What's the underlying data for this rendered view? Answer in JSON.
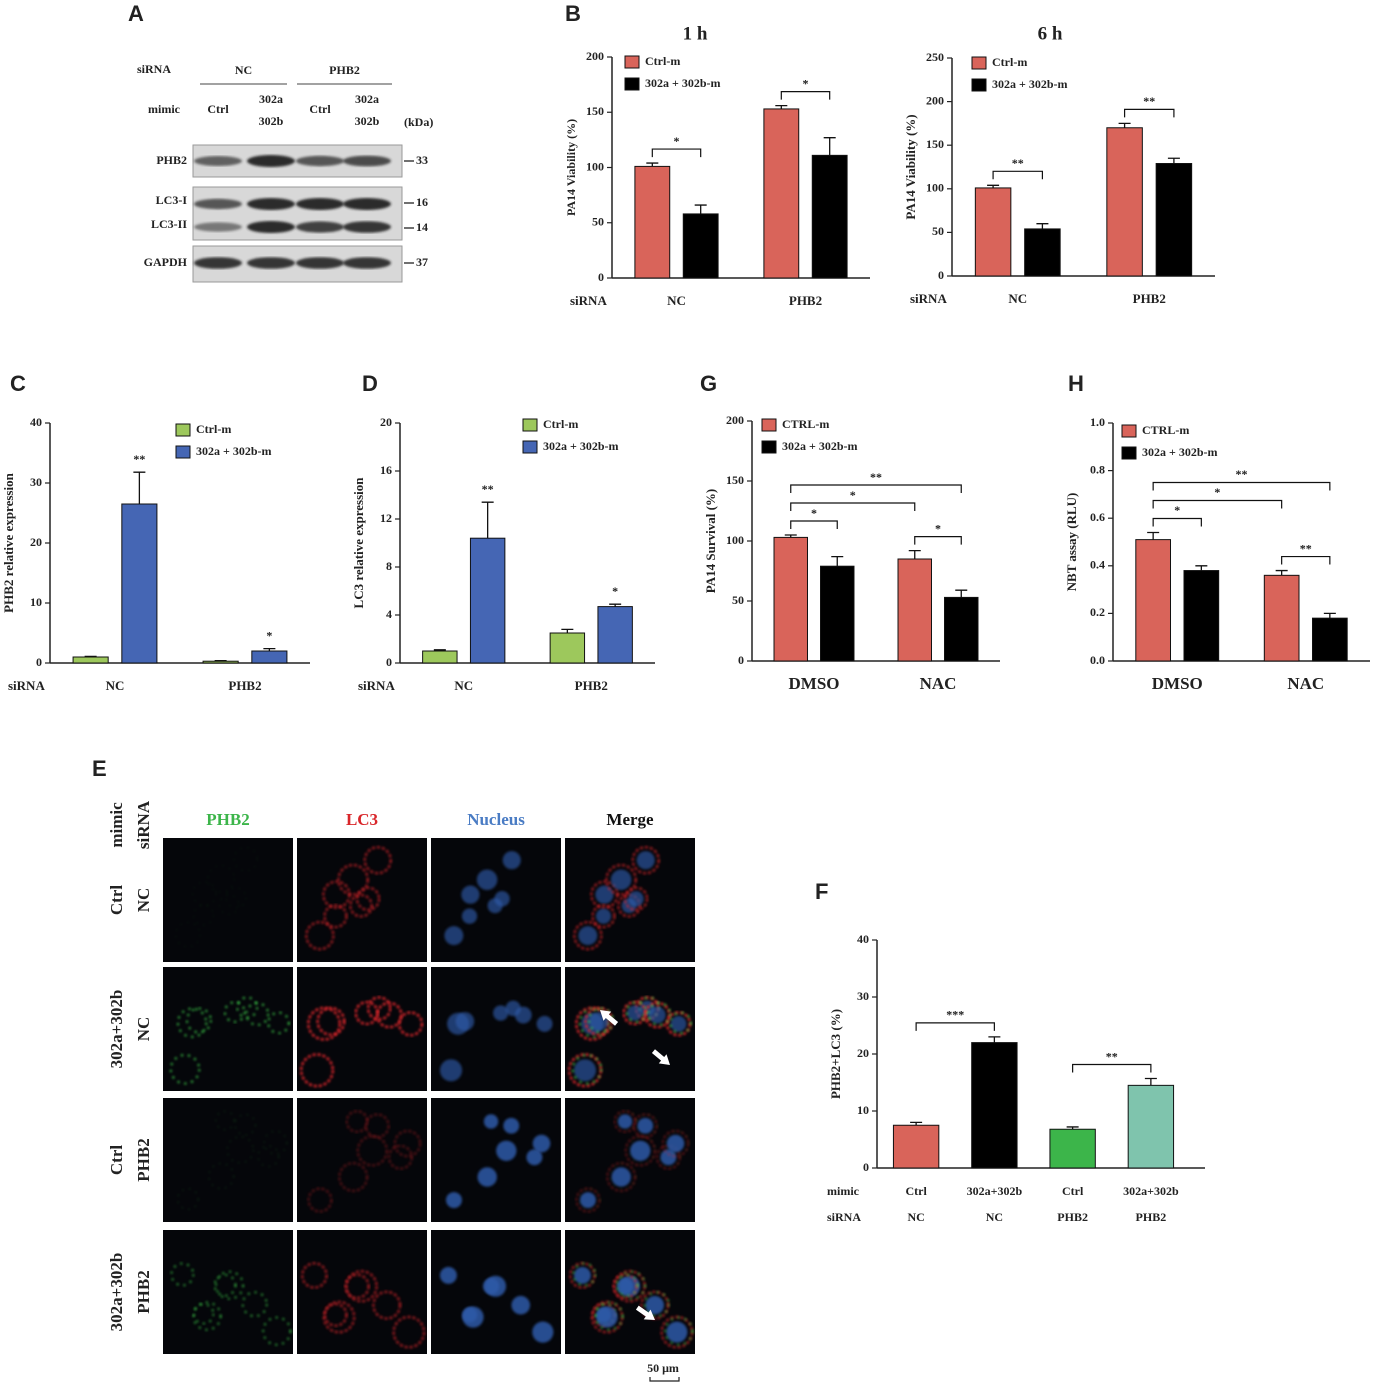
{
  "chart_data": [
    {
      "type": "bar",
      "label": "B",
      "title": "1 h",
      "ylabel": "PA14 Viability (%)",
      "category_title": "siRNA",
      "categories": [
        "NC",
        "PHB2"
      ],
      "series": [
        {
          "name": "Ctrl-m",
          "color": "#d9645a",
          "values": [
            101,
            153
          ],
          "errors": [
            3,
            3
          ]
        },
        {
          "name": "302a + 302b-m",
          "color": "#000000",
          "values": [
            58,
            111
          ],
          "errors": [
            8,
            16
          ]
        }
      ],
      "ylim": [
        0,
        200
      ],
      "yticks": [
        0,
        50,
        100,
        150,
        200
      ],
      "legend": "upper left",
      "annotations": [
        {
          "text": "*",
          "from": [
            0,
            0
          ],
          "to": [
            1,
            0
          ]
        },
        {
          "text": "*",
          "from": [
            0,
            1
          ],
          "to": [
            1,
            1
          ]
        }
      ]
    },
    {
      "type": "bar",
      "title": "6 h",
      "ylabel": "PA14 Viability (%)",
      "category_title": "siRNA",
      "categories": [
        "NC",
        "PHB2"
      ],
      "series": [
        {
          "name": "Ctrl-m",
          "color": "#d9645a",
          "values": [
            101,
            170
          ],
          "errors": [
            3,
            5
          ]
        },
        {
          "name": "302a + 302b-m",
          "color": "#000000",
          "values": [
            54,
            129
          ],
          "errors": [
            6,
            6
          ]
        }
      ],
      "ylim": [
        0,
        250
      ],
      "yticks": [
        0,
        50,
        100,
        150,
        200,
        250
      ],
      "legend": "upper left",
      "annotations": [
        {
          "text": "**",
          "from": [
            0,
            0
          ],
          "to": [
            1,
            0
          ]
        },
        {
          "text": "**",
          "from": [
            0,
            1
          ],
          "to": [
            1,
            1
          ]
        }
      ]
    },
    {
      "type": "bar",
      "label": "C",
      "ylabel": "PHB2 relative expression",
      "category_title": "siRNA",
      "categories": [
        "NC",
        "PHB2"
      ],
      "series": [
        {
          "name": "Ctrl-m",
          "color": "#9dc85c",
          "values": [
            1,
            0.3
          ],
          "errors": [
            0.1,
            0.1
          ]
        },
        {
          "name": "302a + 302b-m",
          "color": "#4566b4",
          "values": [
            26.5,
            2
          ],
          "errors": [
            5.3,
            0.4
          ]
        }
      ],
      "ylim": [
        0,
        40
      ],
      "yticks": [
        0,
        10,
        20,
        30,
        40
      ],
      "legend": "upper left",
      "annotations": [
        {
          "text": "**",
          "bar": [
            1,
            0
          ]
        },
        {
          "text": "*",
          "bar": [
            1,
            1
          ]
        }
      ]
    },
    {
      "type": "bar",
      "label": "D",
      "ylabel": "LC3 relative expression",
      "category_title": "siRNA",
      "categories": [
        "NC",
        "PHB2"
      ],
      "series": [
        {
          "name": "Ctrl-m",
          "color": "#9dc85c",
          "values": [
            1,
            2.5
          ],
          "errors": [
            0.1,
            0.3
          ]
        },
        {
          "name": "302a + 302b-m",
          "color": "#4566b4",
          "values": [
            10.4,
            4.7
          ],
          "errors": [
            3,
            0.2
          ]
        }
      ],
      "ylim": [
        0,
        20
      ],
      "yticks": [
        0,
        4,
        8,
        12,
        16,
        20
      ],
      "legend": "upper left",
      "annotations": [
        {
          "text": "**",
          "bar": [
            1,
            0
          ]
        },
        {
          "text": "*",
          "bar": [
            1,
            1
          ]
        }
      ]
    },
    {
      "type": "bar",
      "label": "G",
      "ylabel": "PA14 Survival (%)",
      "categories": [
        "DMSO",
        "NAC"
      ],
      "series": [
        {
          "name": "CTRL-m",
          "color": "#d9645a",
          "values": [
            103,
            85
          ],
          "errors": [
            2,
            7
          ]
        },
        {
          "name": "302a + 302b-m",
          "color": "#000000",
          "values": [
            79,
            53
          ],
          "errors": [
            8,
            6
          ]
        }
      ],
      "ylim": [
        0,
        200
      ],
      "yticks": [
        0,
        50,
        100,
        150,
        200
      ],
      "legend": "upper left",
      "annotations": [
        {
          "text": "*",
          "from": [
            0,
            0
          ],
          "to": [
            1,
            0
          ]
        },
        {
          "text": "*",
          "from": [
            0,
            1
          ],
          "to": [
            1,
            1
          ]
        },
        {
          "text": "*",
          "from": [
            0,
            0
          ],
          "to": [
            0,
            1
          ]
        },
        {
          "text": "**",
          "from": [
            0,
            0
          ],
          "to": [
            1,
            1
          ]
        }
      ]
    },
    {
      "type": "bar",
      "label": "H",
      "ylabel": "NBT assay (RLU)",
      "categories": [
        "DMSO",
        "NAC"
      ],
      "series": [
        {
          "name": "CTRL-m",
          "color": "#d9645a",
          "values": [
            0.51,
            0.36
          ],
          "errors": [
            0.03,
            0.02
          ]
        },
        {
          "name": "302a + 302b-m",
          "color": "#000000",
          "values": [
            0.38,
            0.18
          ],
          "errors": [
            0.02,
            0.02
          ]
        }
      ],
      "ylim": [
        0,
        1
      ],
      "yticks": [
        {
          "value": 0,
          "label": "0.0"
        },
        0.2,
        0.4,
        0.6,
        0.8,
        {
          "value": 1,
          "label": "1.0"
        }
      ],
      "legend": "upper left",
      "annotations": [
        {
          "text": "*",
          "from": [
            0,
            0
          ],
          "to": [
            1,
            0
          ]
        },
        {
          "text": "**",
          "from": [
            0,
            1
          ],
          "to": [
            1,
            1
          ]
        },
        {
          "text": "*",
          "from": [
            0,
            0
          ],
          "to": [
            0,
            1
          ]
        },
        {
          "text": "**",
          "from": [
            0,
            0
          ],
          "to": [
            1,
            1
          ]
        }
      ]
    },
    {
      "type": "bar",
      "label": "F",
      "ylabel": "PHB2+LC3 (%)",
      "category_rows": [
        {
          "name": "mimic",
          "labels": [
            "Ctrl",
            "302a+302b",
            "Ctrl",
            "302a+302b"
          ]
        },
        {
          "name": "siRNA",
          "labels": [
            "NC",
            "NC",
            "PHB2",
            "PHB2"
          ]
        }
      ],
      "values": [
        7.5,
        22,
        6.8,
        14.5
      ],
      "errors": [
        0.5,
        1,
        0.4,
        1.2
      ],
      "colors": [
        "#d9645a",
        "#000000",
        "#3cb54a",
        "#7fc4ad"
      ],
      "ylim": [
        0,
        40
      ],
      "yticks": [
        0,
        10,
        20,
        30,
        40
      ],
      "annotations": [
        {
          "text": "***",
          "from": [
            0,
            0
          ],
          "to": [
            0,
            1
          ]
        },
        {
          "text": "**",
          "from": [
            0,
            2
          ],
          "to": [
            0,
            3
          ]
        }
      ]
    }
  ],
  "blot": {
    "label": "A",
    "sirna_label": "siRNA",
    "sirna": [
      "NC",
      "PHB2"
    ],
    "mimic_label": "mimic",
    "mimic": [
      [
        "Ctrl"
      ],
      [
        "302a",
        "302b"
      ],
      [
        "Ctrl"
      ],
      [
        "302a",
        "302b"
      ]
    ],
    "unit": "(kDa)",
    "bands": [
      "PHB2",
      "LC3-I",
      "LC3-II",
      "GAPDH"
    ],
    "markers": [
      33,
      16,
      14,
      37
    ]
  },
  "microscopy": {
    "label": "E",
    "channels": [
      "PHB2",
      "LC3",
      "Nucleus",
      "Merge"
    ],
    "channel_colors": [
      "#3cb54a",
      "#d9262a",
      "#4a7cc4",
      "#111111"
    ],
    "row_headers": [
      "mimic",
      "siRNA"
    ],
    "rows": [
      [
        "Ctrl",
        "NC"
      ],
      [
        "302a+302b",
        "NC"
      ],
      [
        "Ctrl",
        "PHB2"
      ],
      [
        "302a+302b",
        "PHB2"
      ]
    ],
    "scale_bar": "50 μm"
  }
}
